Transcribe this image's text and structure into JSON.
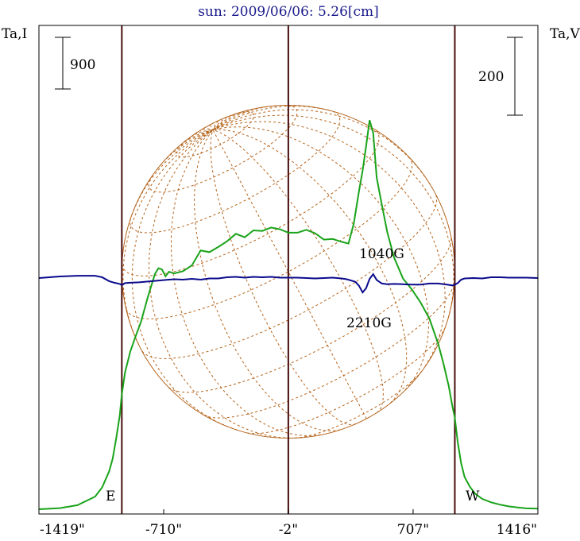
{
  "chart_data": {
    "type": "line",
    "title": "sun: 2009/06/06: 5.26[cm]",
    "left_axis_label": "Ta,I",
    "right_axis_label": "Ta,V",
    "x_tick_labels": [
      "-1419\"",
      "-710\"",
      "-2\"",
      "707\"",
      "1416\""
    ],
    "x_tick_values": [
      -1419,
      -710,
      -2,
      707,
      1416
    ],
    "xlim": [
      -1419,
      1416
    ],
    "left_scale_bar": {
      "label": "900",
      "value": 900
    },
    "right_scale_bar": {
      "label": "200",
      "value": 200
    },
    "limb_labels": {
      "east": "E",
      "west": "W"
    },
    "annotations": [
      "1040G",
      "2210G"
    ],
    "vertical_markers_arcsec": [
      -948,
      -2,
      944
    ],
    "solar_disk_radius_arcsec": 946,
    "colors": {
      "intensity": "#1aa31a",
      "polarization": "#0a0a8c",
      "disk": "#b5651d",
      "markers": "#4a0d0d",
      "frame": "#000000",
      "title": "#1a1a8c"
    },
    "series": [
      {
        "name": "Ta,I",
        "axis": "left",
        "x": [
          -1419,
          -1300,
          -1200,
          -1100,
          -1060,
          -1020,
          -1000,
          -980,
          -960,
          -948,
          -930,
          -900,
          -870,
          -840,
          -800,
          -760,
          -740,
          -720,
          -700,
          -680,
          -650,
          -600,
          -550,
          -500,
          -450,
          -400,
          -350,
          -300,
          -250,
          -200,
          -150,
          -100,
          -50,
          -2,
          50,
          100,
          150,
          200,
          250,
          300,
          340,
          370,
          400,
          420,
          440,
          460,
          480,
          500,
          530,
          560,
          600,
          650,
          700,
          750,
          800,
          850,
          880,
          910,
          930,
          944,
          960,
          980,
          1000,
          1030,
          1060,
          1100,
          1150,
          1200,
          1250,
          1300,
          1350,
          1416
        ],
        "y": [
          -180,
          -160,
          -110,
          40,
          200,
          480,
          700,
          1050,
          1450,
          1820,
          2200,
          2570,
          2830,
          3080,
          3520,
          3920,
          4020,
          4000,
          3880,
          3960,
          3930,
          3970,
          4070,
          4330,
          4300,
          4390,
          4490,
          4620,
          4560,
          4680,
          4670,
          4730,
          4700,
          4640,
          4640,
          4690,
          4630,
          4520,
          4530,
          4480,
          4450,
          4800,
          5370,
          5720,
          6150,
          6600,
          6380,
          5600,
          5120,
          4650,
          4200,
          3840,
          3650,
          3420,
          3140,
          2700,
          2350,
          1960,
          1620,
          1420,
          1000,
          620,
          380,
          210,
          90,
          0,
          -60,
          -100,
          -130,
          -150,
          -165,
          -170
        ]
      },
      {
        "name": "Ta,V",
        "axis": "right",
        "x": [
          -1419,
          -1300,
          -1200,
          -1100,
          -1060,
          -1020,
          -990,
          -960,
          -948,
          -930,
          -900,
          -850,
          -800,
          -750,
          -700,
          -650,
          -600,
          -550,
          -500,
          -450,
          -400,
          -350,
          -300,
          -250,
          -200,
          -150,
          -100,
          -50,
          -2,
          50,
          100,
          150,
          200,
          250,
          300,
          330,
          360,
          380,
          400,
          420,
          440,
          460,
          480,
          500,
          530,
          560,
          600,
          650,
          700,
          750,
          800,
          850,
          900,
          930,
          944,
          960,
          980,
          1000,
          1050,
          1100,
          1150,
          1200,
          1250,
          1300,
          1350,
          1416
        ],
        "y": [
          0,
          4,
          6,
          6,
          2,
          -8,
          -12,
          -15,
          -18,
          -13,
          -12,
          -11,
          -9,
          -7,
          -5,
          -3,
          -4,
          -2,
          -4,
          -1,
          -1,
          2,
          3,
          1,
          3,
          2,
          3,
          1,
          1,
          1,
          0,
          -1,
          0,
          1,
          -1,
          -3,
          -7,
          -10,
          -20,
          -37,
          -26,
          -2,
          10,
          -5,
          -14,
          -16,
          -15,
          -16,
          -17,
          -17,
          -14,
          -14,
          -17,
          -19,
          -17,
          -13,
          -4,
          -1,
          0,
          -1,
          2,
          2,
          1,
          1,
          1,
          0
        ]
      }
    ]
  }
}
